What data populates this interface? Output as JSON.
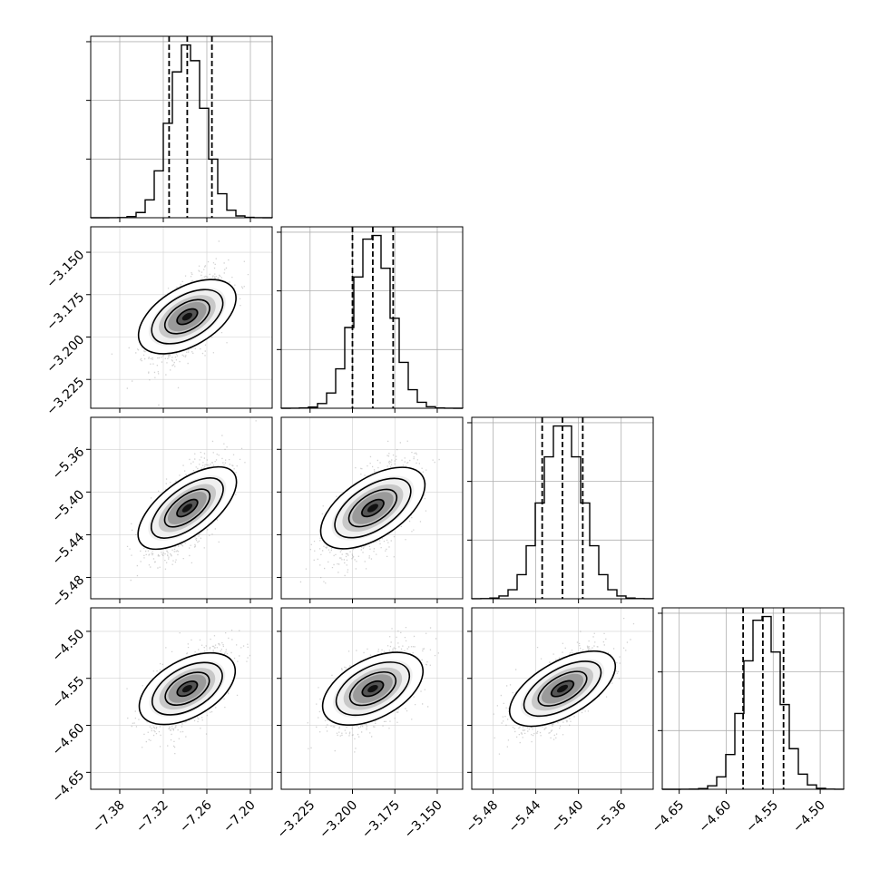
{
  "chart_data": {
    "type": "corner",
    "parameters": [
      {
        "ticks": [
          -7.38,
          -7.32,
          -7.26,
          -7.2
        ],
        "tick_labels": [
          "−7.38",
          "−7.32",
          "−7.26",
          "−7.20"
        ],
        "range": [
          -7.42,
          -7.17
        ],
        "mean": -7.287,
        "sd": 0.024,
        "quantiles": [
          -7.312,
          -7.287,
          -7.253
        ]
      },
      {
        "ticks": [
          -3.225,
          -3.2,
          -3.175,
          -3.15
        ],
        "tick_labels": [
          "−3.225",
          "−3.200",
          "−3.175",
          "−3.150"
        ],
        "range": [
          -3.242,
          -3.135
        ],
        "mean": -3.188,
        "sd": 0.011,
        "quantiles": [
          -3.2,
          -3.188,
          -3.176
        ]
      },
      {
        "ticks": [
          -5.48,
          -5.44,
          -5.4,
          -5.36
        ],
        "tick_labels": [
          "−5.48",
          "−5.44",
          "−5.40",
          "−5.36"
        ],
        "range": [
          -5.5,
          -5.33
        ],
        "mean": -5.415,
        "sd": 0.019,
        "quantiles": [
          -5.434,
          -5.415,
          -5.396
        ]
      },
      {
        "ticks": [
          -4.65,
          -4.6,
          -4.55,
          -4.5
        ],
        "tick_labels": [
          "−4.65",
          "−4.60",
          "−4.55",
          "−4.50"
        ],
        "range": [
          -4.668,
          -4.475
        ],
        "mean": -4.561,
        "sd": 0.019,
        "quantiles": [
          -4.582,
          -4.561,
          -4.539
        ]
      }
    ],
    "correlations": {
      "1-0": 0.55,
      "2-0": 0.65,
      "2-1": 0.6,
      "3-0": 0.55,
      "3-1": 0.55,
      "3-2": 0.65
    },
    "grid": true
  }
}
